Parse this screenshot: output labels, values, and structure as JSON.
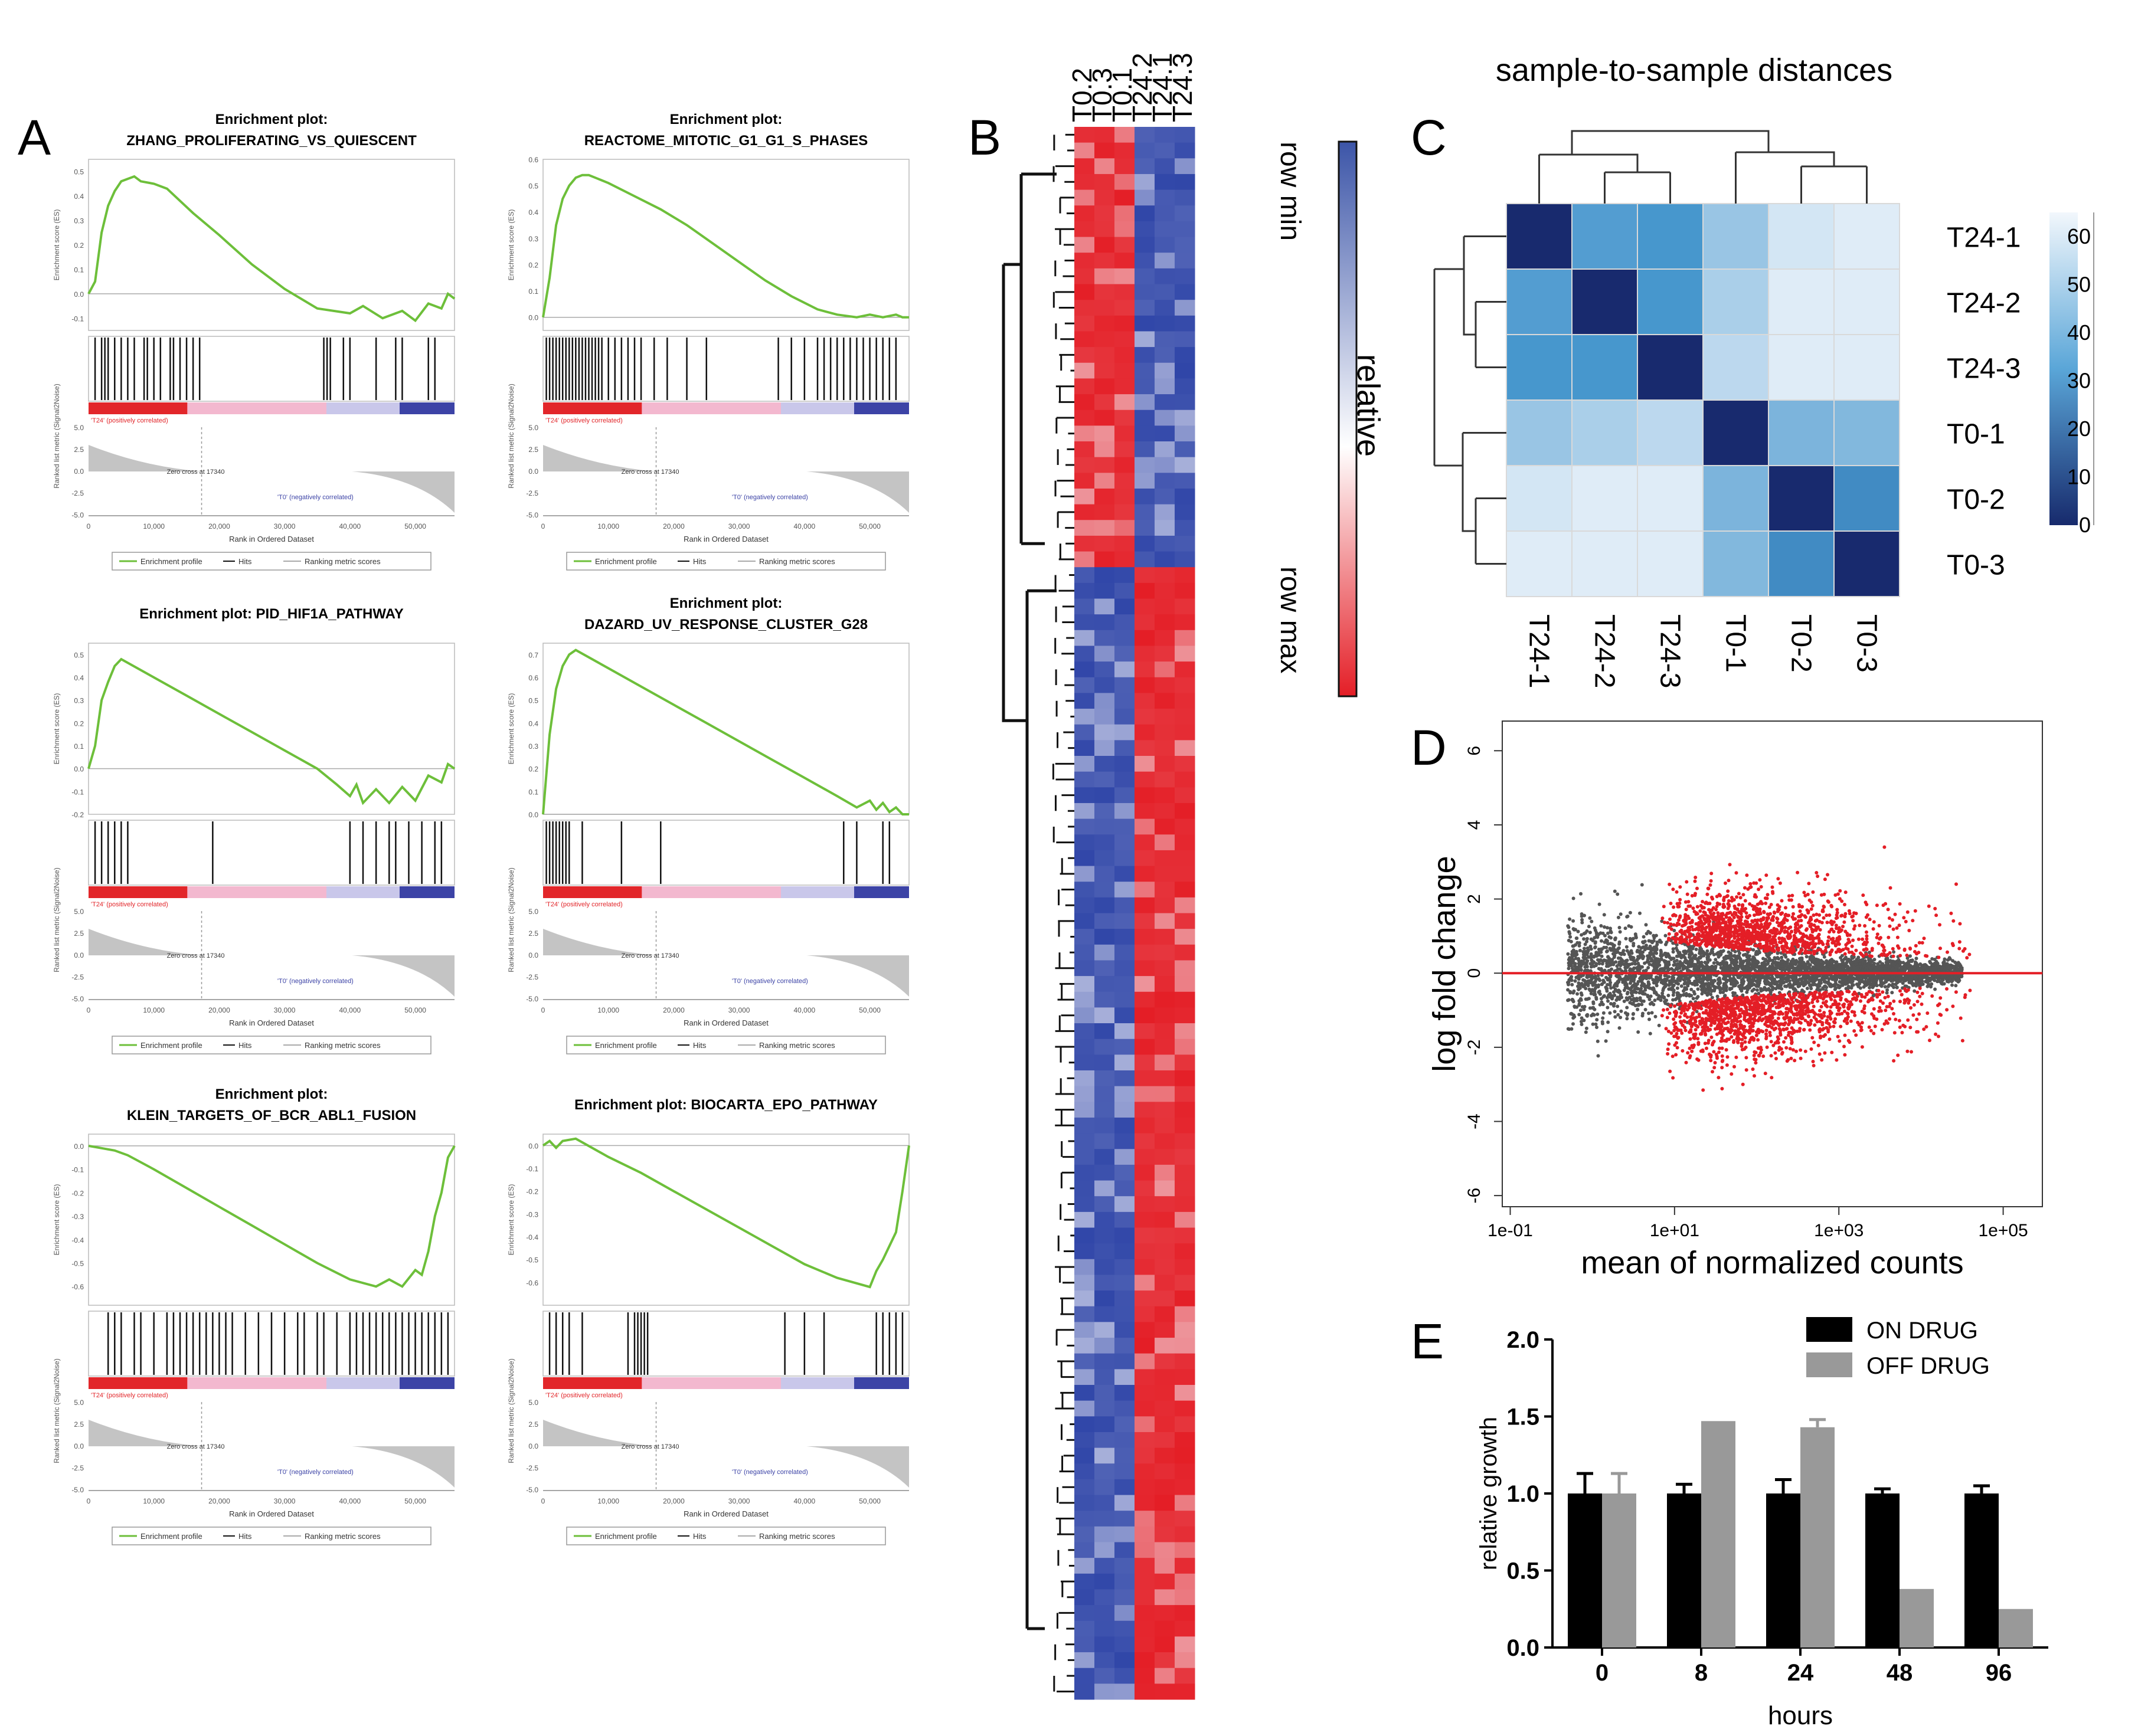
{
  "panel_labels": {
    "A": "A",
    "B": "B",
    "C": "C",
    "D": "D",
    "E": "E"
  },
  "gsea_common": {
    "es_ylabel": "Enrichment score (ES)",
    "metric_ylabel": "Ranked list metric (Signal2Noise)",
    "xlabel": "Rank in Ordered Dataset",
    "pos_label": "'T24' (positively correlated)",
    "neg_label": "'T0' (negatively correlated)",
    "zero_cross": "Zero cross at 17340",
    "legend_profile": "Enrichment profile",
    "legend_hits": "Hits",
    "legend_metric": "Ranking metric scores",
    "x_ticks": [
      "0",
      "10,000",
      "20,000",
      "30,000",
      "40,000",
      "50,000"
    ],
    "metric_ticks": [
      "5.0",
      "2.5",
      "0.0",
      "-2.5",
      "-5.0"
    ],
    "colors": {
      "curve": "#6dbf3a",
      "pos": "#e2262a",
      "pink": "#f3b8cf",
      "neg": "#3c43a6"
    }
  },
  "chart_data": [
    {
      "type": "line",
      "id": "gsea-1",
      "panel": "A",
      "title": "Enrichment plot:",
      "subtitle": "ZHANG_PROLIFERATING_VS_QUIESCENT",
      "ylim": [
        -0.15,
        0.55
      ],
      "yticks": [
        "0.5",
        "0.4",
        "0.3",
        "0.2",
        "0.1",
        "0.0",
        "-0.1"
      ],
      "x": [
        0,
        1,
        2,
        3,
        4,
        5,
        6,
        7,
        8,
        10,
        12,
        14,
        16,
        20,
        25,
        30,
        35,
        40,
        42,
        45,
        48,
        50,
        52,
        54,
        55,
        56
      ],
      "y": [
        0,
        0.05,
        0.25,
        0.36,
        0.42,
        0.46,
        0.47,
        0.48,
        0.46,
        0.45,
        0.43,
        0.38,
        0.33,
        0.24,
        0.12,
        0.02,
        -0.06,
        -0.08,
        -0.05,
        -0.1,
        -0.07,
        -0.11,
        -0.04,
        -0.06,
        0,
        -0.02
      ],
      "hits": [
        1,
        2,
        2.5,
        3,
        4,
        5,
        6,
        7,
        8.5,
        9,
        10,
        11,
        12.5,
        13,
        14,
        15,
        16,
        17,
        36,
        36.5,
        37,
        39,
        40,
        44,
        47,
        48,
        52,
        53
      ],
      "zero_cross_x": 17.3
    },
    {
      "type": "line",
      "id": "gsea-2",
      "panel": "A",
      "title": "Enrichment plot:",
      "subtitle": "REACTOME_MITOTIC_G1_G1_S_PHASES",
      "ylim": [
        -0.05,
        0.6
      ],
      "yticks": [
        "0.6",
        "0.5",
        "0.4",
        "0.3",
        "0.2",
        "0.1",
        "0.0"
      ],
      "x": [
        0,
        1,
        2,
        3,
        4,
        5,
        6,
        7,
        8,
        10,
        14,
        18,
        22,
        26,
        30,
        34,
        38,
        42,
        45,
        48,
        50,
        52,
        54,
        55,
        56
      ],
      "y": [
        0,
        0.15,
        0.35,
        0.45,
        0.5,
        0.53,
        0.54,
        0.54,
        0.53,
        0.51,
        0.46,
        0.41,
        0.35,
        0.28,
        0.21,
        0.14,
        0.08,
        0.03,
        0.01,
        0.0,
        0.01,
        0.0,
        0.01,
        0.0,
        0.0
      ],
      "hits": [
        0.5,
        1,
        1.5,
        2,
        2.5,
        3,
        3.5,
        4,
        4.5,
        5,
        5.5,
        6,
        6.5,
        7,
        7.5,
        8,
        8.5,
        9,
        10,
        11,
        12,
        13,
        14,
        15,
        17,
        19,
        22,
        25,
        36,
        38,
        40,
        42,
        43,
        44,
        45,
        46,
        47,
        48,
        49,
        50,
        51,
        52,
        53,
        54
      ],
      "zero_cross_x": 17.3
    },
    {
      "type": "line",
      "id": "gsea-3",
      "panel": "A",
      "title": "Enrichment plot: PID_HIF1A_PATHWAY",
      "subtitle": "",
      "ylim": [
        -0.2,
        0.55
      ],
      "yticks": [
        "0.5",
        "0.4",
        "0.3",
        "0.2",
        "0.1",
        "0.0",
        "-0.1",
        "-0.2"
      ],
      "x": [
        0,
        1,
        2,
        3,
        4,
        5,
        10,
        15,
        20,
        25,
        30,
        35,
        38,
        40,
        41,
        42,
        44,
        46,
        48,
        50,
        52,
        54,
        55,
        56
      ],
      "y": [
        0,
        0.1,
        0.3,
        0.38,
        0.45,
        0.48,
        0.4,
        0.32,
        0.24,
        0.16,
        0.08,
        0.0,
        -0.07,
        -0.12,
        -0.07,
        -0.15,
        -0.09,
        -0.15,
        -0.08,
        -0.14,
        -0.03,
        -0.06,
        0.02,
        0.0
      ],
      "hits": [
        1,
        2,
        3,
        4,
        5,
        6,
        19,
        40,
        42,
        44,
        46,
        47,
        49,
        51,
        53,
        54
      ],
      "zero_cross_x": 17.3
    },
    {
      "type": "line",
      "id": "gsea-4",
      "panel": "A",
      "title": "Enrichment plot:",
      "subtitle": "DAZARD_UV_RESPONSE_CLUSTER_G28",
      "ylim": [
        0,
        0.75
      ],
      "yticks": [
        "0.7",
        "0.6",
        "0.5",
        "0.4",
        "0.3",
        "0.2",
        "0.1",
        "0.0"
      ],
      "x": [
        0,
        1,
        2,
        3,
        4,
        5,
        10,
        15,
        20,
        25,
        30,
        35,
        40,
        45,
        48,
        50,
        51,
        52,
        53,
        54,
        55,
        56
      ],
      "y": [
        0,
        0.35,
        0.55,
        0.65,
        0.7,
        0.72,
        0.64,
        0.56,
        0.48,
        0.4,
        0.32,
        0.24,
        0.16,
        0.08,
        0.03,
        0.06,
        0.02,
        0.05,
        0.01,
        0.03,
        0.0,
        0.0
      ],
      "hits": [
        0.5,
        1,
        1.5,
        2,
        2.5,
        3,
        3.5,
        4,
        6,
        12,
        18,
        46,
        48,
        52,
        53
      ],
      "zero_cross_x": 17.3
    },
    {
      "type": "line",
      "id": "gsea-5",
      "panel": "A",
      "title": "Enrichment plot:",
      "subtitle": "KLEIN_TARGETS_OF_BCR_ABL1_FUSION",
      "ylim": [
        -0.68,
        0.05
      ],
      "yticks": [
        "0.0",
        "-0.1",
        "-0.2",
        "-0.3",
        "-0.4",
        "-0.5",
        "-0.6"
      ],
      "x": [
        0,
        2,
        4,
        6,
        10,
        15,
        20,
        25,
        30,
        35,
        40,
        44,
        46,
        48,
        50,
        51,
        52,
        53,
        54,
        55,
        56
      ],
      "y": [
        0,
        -0.01,
        -0.02,
        -0.04,
        -0.1,
        -0.18,
        -0.26,
        -0.34,
        -0.42,
        -0.5,
        -0.57,
        -0.6,
        -0.57,
        -0.6,
        -0.53,
        -0.55,
        -0.45,
        -0.3,
        -0.2,
        -0.05,
        0.0
      ],
      "hits": [
        3,
        4,
        5,
        7,
        8,
        10,
        12,
        13,
        14,
        15,
        16,
        17,
        18,
        19,
        20,
        21,
        22,
        24,
        26,
        28,
        30,
        32,
        33,
        35,
        36,
        38,
        40,
        41,
        42,
        43,
        44,
        45,
        46,
        47,
        48,
        49,
        50,
        51,
        52,
        53,
        54,
        55
      ],
      "zero_cross_x": 17.3
    },
    {
      "type": "line",
      "id": "gsea-6",
      "panel": "A",
      "title": "Enrichment plot: BIOCARTA_EPO_PATHWAY",
      "subtitle": "",
      "ylim": [
        -0.7,
        0.05
      ],
      "yticks": [
        "0.0",
        "-0.1",
        "-0.2",
        "-0.3",
        "-0.4",
        "-0.5",
        "-0.6"
      ],
      "x": [
        0,
        1,
        2,
        3,
        5,
        10,
        15,
        20,
        25,
        30,
        35,
        40,
        45,
        50,
        51,
        52,
        53,
        54,
        55,
        56
      ],
      "y": [
        0,
        0.02,
        -0.01,
        0.02,
        0.03,
        -0.05,
        -0.12,
        -0.2,
        -0.28,
        -0.36,
        -0.44,
        -0.52,
        -0.58,
        -0.62,
        -0.55,
        -0.5,
        -0.44,
        -0.38,
        -0.2,
        0.0
      ],
      "hits": [
        1,
        2,
        3,
        4,
        6,
        13,
        14,
        14.5,
        15,
        15.5,
        16,
        37,
        40,
        43,
        51,
        52,
        53,
        54,
        55
      ],
      "zero_cross_x": 17.3
    },
    {
      "type": "heatmap",
      "id": "heatmap-b",
      "panel": "B",
      "columns": [
        "T0.2",
        "T0.3",
        "T0.1",
        "T24.2",
        "T24.1",
        "T24.3"
      ],
      "n_rows": 100,
      "split_row": 28,
      "colorbar": {
        "top": "row min",
        "middle": "relative",
        "bottom": "row max",
        "top_color": "#3c55a8",
        "bottom_color": "#e41e26"
      }
    },
    {
      "type": "heatmap",
      "id": "distance-c",
      "panel": "C",
      "title": "sample-to-sample distances",
      "rows": [
        "T24-1",
        "T24-2",
        "T24-3",
        "T0-1",
        "T0-2",
        "T0-3"
      ],
      "columns": [
        "T24-1",
        "T24-2",
        "T24-3",
        "T0-1",
        "T0-2",
        "T0-3"
      ],
      "values": [
        [
          0,
          38,
          36,
          50,
          60,
          62
        ],
        [
          38,
          0,
          36,
          53,
          62,
          62
        ],
        [
          36,
          36,
          0,
          56,
          62,
          62
        ],
        [
          50,
          53,
          56,
          0,
          45,
          46
        ],
        [
          60,
          62,
          62,
          45,
          0,
          32
        ],
        [
          62,
          62,
          62,
          46,
          32,
          0
        ]
      ],
      "colorbar_ticks": [
        "60",
        "50",
        "40",
        "30",
        "20",
        "10",
        "0"
      ],
      "vmin": 0,
      "vmax": 65
    },
    {
      "type": "scatter",
      "id": "ma-plot-d",
      "panel": "D",
      "xlabel": "mean of normalized counts",
      "ylabel": "log fold change",
      "xscale": "log",
      "xlim": [
        0.08,
        300000
      ],
      "ylim": [
        -6.3,
        6.8
      ],
      "x_ticks": [
        "1e-01",
        "1e+01",
        "1e+03",
        "1e+05"
      ],
      "y_ticks": [
        "6",
        "4",
        "2",
        "0",
        "-2",
        "-4",
        "-6"
      ],
      "series": [
        {
          "color": "#555555"
        },
        {
          "color": "#e41e26"
        }
      ],
      "hline": 0,
      "hline_color": "#e41e26"
    },
    {
      "type": "bar",
      "id": "growth-e",
      "panel": "E",
      "xlabel": "hours",
      "ylabel": "relative growth",
      "categories": [
        "0",
        "8",
        "24",
        "48",
        "96"
      ],
      "ylim": [
        0,
        2.0
      ],
      "yticks": [
        "0.0",
        "0.5",
        "1.0",
        "1.5",
        "2.0"
      ],
      "series": [
        {
          "name": "ON DRUG",
          "color": "#000000",
          "values": [
            1.0,
            1.0,
            1.0,
            1.0,
            1.0
          ],
          "errors": [
            0.13,
            0.06,
            0.09,
            0.03,
            0.05
          ]
        },
        {
          "name": "OFF DRUG",
          "color": "#999999",
          "values": [
            1.0,
            1.47,
            1.43,
            0.38,
            0.25
          ],
          "errors": [
            0.13,
            0.0,
            0.05,
            0.0,
            0.0
          ]
        }
      ]
    }
  ]
}
